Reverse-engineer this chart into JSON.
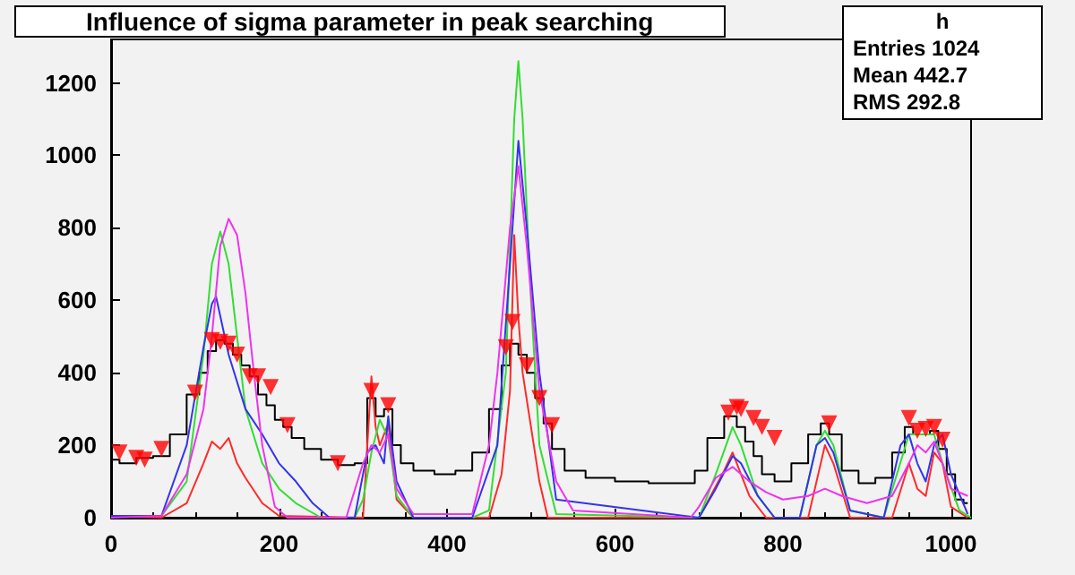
{
  "chart_data": {
    "type": "line",
    "title": "Influence of sigma parameter in peak searching",
    "annotations": [
      "h",
      "Entries 1024",
      "Mean 442.7",
      "RMS 292.8"
    ],
    "xlim": [
      0,
      1024
    ],
    "xticks": [
      0,
      200,
      400,
      600,
      800,
      1000
    ],
    "ylim": [
      0,
      1320
    ],
    "yticks": [
      0,
      200,
      400,
      600,
      800,
      1000,
      1200
    ],
    "grid": false,
    "marker": "none",
    "line_style": "solid",
    "series": [
      {
        "type": "step",
        "color": "#000000",
        "x": [
          0,
          20,
          40,
          60,
          80,
          100,
          110,
          120,
          130,
          140,
          150,
          160,
          170,
          180,
          190,
          200,
          210,
          220,
          240,
          260,
          280,
          300,
          310,
          320,
          330,
          340,
          350,
          370,
          400,
          420,
          440,
          460,
          470,
          480,
          490,
          500,
          510,
          520,
          530,
          550,
          580,
          620,
          660,
          690,
          700,
          720,
          740,
          750,
          760,
          770,
          780,
          800,
          820,
          840,
          850,
          860,
          880,
          900,
          920,
          940,
          950,
          960,
          970,
          980,
          990,
          1000,
          1010,
          1020
        ],
        "values": [
          160,
          150,
          165,
          170,
          230,
          340,
          400,
          460,
          490,
          480,
          450,
          420,
          390,
          340,
          310,
          270,
          250,
          220,
          190,
          160,
          145,
          150,
          330,
          280,
          300,
          200,
          150,
          130,
          120,
          130,
          180,
          300,
          420,
          480,
          450,
          400,
          330,
          260,
          190,
          130,
          110,
          100,
          95,
          95,
          130,
          220,
          280,
          250,
          210,
          170,
          120,
          100,
          150,
          230,
          260,
          230,
          130,
          95,
          110,
          180,
          250,
          230,
          230,
          240,
          190,
          120,
          50,
          40
        ]
      },
      {
        "color": "#ff2a2a",
        "x": [
          0,
          60,
          90,
          110,
          120,
          130,
          140,
          150,
          160,
          180,
          200,
          300,
          310,
          315,
          320,
          330,
          340,
          360,
          450,
          465,
          475,
          480,
          485,
          490,
          500,
          510,
          520,
          700,
          730,
          740,
          750,
          760,
          780,
          830,
          850,
          860,
          880,
          930,
          950,
          960,
          970,
          980,
          990,
          1000,
          1020
        ],
        "values": [
          5,
          0,
          40,
          150,
          210,
          190,
          220,
          150,
          110,
          40,
          5,
          0,
          390,
          250,
          200,
          260,
          50,
          0,
          0,
          120,
          350,
          780,
          550,
          400,
          250,
          100,
          0,
          0,
          130,
          180,
          120,
          60,
          0,
          0,
          200,
          150,
          0,
          0,
          150,
          80,
          60,
          180,
          150,
          30,
          0
        ]
      },
      {
        "color": "#33dd33",
        "x": [
          0,
          60,
          90,
          110,
          120,
          130,
          140,
          150,
          160,
          180,
          200,
          220,
          250,
          290,
          300,
          310,
          320,
          330,
          340,
          360,
          430,
          450,
          470,
          480,
          485,
          490,
          500,
          510,
          530,
          700,
          720,
          740,
          750,
          770,
          790,
          820,
          840,
          850,
          860,
          880,
          920,
          950,
          960,
          970,
          980,
          990,
          1010,
          1024
        ],
        "values": [
          5,
          5,
          100,
          450,
          700,
          790,
          700,
          500,
          300,
          150,
          80,
          40,
          0,
          0,
          50,
          180,
          270,
          220,
          60,
          0,
          0,
          20,
          400,
          1100,
          1260,
          1100,
          600,
          200,
          10,
          0,
          120,
          250,
          200,
          60,
          0,
          0,
          200,
          240,
          200,
          20,
          0,
          230,
          230,
          230,
          230,
          150,
          20,
          0
        ]
      },
      {
        "color": "#3333ee",
        "x": [
          0,
          60,
          90,
          110,
          120,
          125,
          140,
          160,
          180,
          200,
          220,
          240,
          260,
          290,
          305,
          315,
          325,
          330,
          340,
          360,
          430,
          460,
          475,
          485,
          495,
          510,
          530,
          700,
          720,
          740,
          750,
          770,
          790,
          820,
          840,
          850,
          860,
          880,
          920,
          940,
          950,
          960,
          970,
          980,
          990,
          1000,
          1020
        ],
        "values": [
          5,
          5,
          200,
          470,
          590,
          610,
          450,
          300,
          230,
          150,
          100,
          40,
          0,
          0,
          180,
          200,
          150,
          280,
          100,
          0,
          0,
          200,
          700,
          1040,
          800,
          400,
          50,
          0,
          80,
          170,
          150,
          60,
          0,
          0,
          200,
          220,
          180,
          20,
          0,
          200,
          230,
          150,
          100,
          200,
          230,
          120,
          10
        ]
      },
      {
        "color": "#ee33ee",
        "x": [
          0,
          60,
          90,
          110,
          120,
          130,
          140,
          150,
          160,
          170,
          180,
          195,
          210,
          280,
          300,
          310,
          320,
          330,
          340,
          360,
          430,
          450,
          460,
          475,
          485,
          495,
          510,
          530,
          550,
          690,
          700,
          720,
          740,
          760,
          780,
          800,
          830,
          850,
          870,
          900,
          930,
          950,
          960,
          970,
          980,
          990,
          1000,
          1020
        ],
        "values": [
          0,
          5,
          120,
          300,
          500,
          750,
          825,
          780,
          620,
          400,
          200,
          30,
          0,
          0,
          150,
          200,
          180,
          230,
          80,
          10,
          10,
          200,
          400,
          800,
          970,
          750,
          350,
          100,
          20,
          0,
          30,
          110,
          140,
          100,
          70,
          50,
          60,
          80,
          60,
          40,
          60,
          150,
          200,
          180,
          210,
          150,
          80,
          60
        ]
      },
      {
        "type": "scatter",
        "marker": "triangle",
        "color": "#ff0000",
        "x": [
          10,
          30,
          40,
          60,
          100,
          120,
          130,
          140,
          150,
          165,
          175,
          190,
          210,
          270,
          310,
          330,
          470,
          478,
          495,
          510,
          525,
          735,
          745,
          750,
          765,
          775,
          790,
          855,
          950,
          960,
          970,
          980,
          990
        ],
        "values": [
          180,
          165,
          160,
          190,
          345,
          490,
          485,
          480,
          450,
          390,
          390,
          360,
          255,
          150,
          350,
          310,
          470,
          540,
          420,
          330,
          255,
          290,
          305,
          300,
          275,
          250,
          220,
          260,
          275,
          240,
          245,
          250,
          215
        ]
      }
    ]
  }
}
